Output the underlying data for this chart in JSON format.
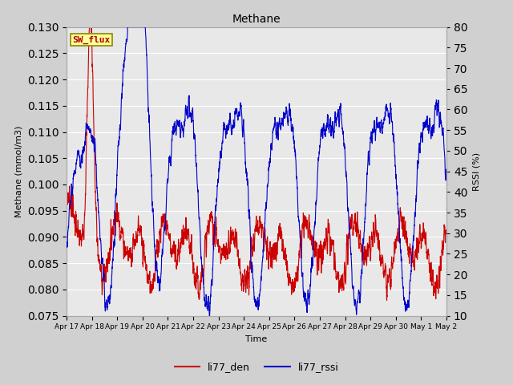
{
  "title": "Methane",
  "ylabel_left": "Methane (mmol/m3)",
  "ylabel_right": "RSSI (%)",
  "xlabel": "Time",
  "ylim_left": [
    0.075,
    0.13
  ],
  "ylim_right": [
    10,
    80
  ],
  "yticks_left": [
    0.075,
    0.08,
    0.085,
    0.09,
    0.095,
    0.1,
    0.105,
    0.11,
    0.115,
    0.12,
    0.125,
    0.13
  ],
  "yticks_right": [
    10,
    15,
    20,
    25,
    30,
    35,
    40,
    45,
    50,
    55,
    60,
    65,
    70,
    75,
    80
  ],
  "xtick_labels": [
    "Apr 17",
    "Apr 18",
    "Apr 19",
    "Apr 20",
    "Apr 21",
    "Apr 22",
    "Apr 23",
    "Apr 24",
    "Apr 25",
    "Apr 26",
    "Apr 27",
    "Apr 28",
    "Apr 29",
    "Apr 30",
    "May 1",
    "May 2"
  ],
  "fig_bg_color": "#d0d0d0",
  "plot_bg_color": "#e8e8e8",
  "grid_color": "#ffffff",
  "line_color_red": "#cc0000",
  "line_color_blue": "#0000cc",
  "legend_labels": [
    "li77_den",
    "li77_rssi"
  ],
  "sw_flux_box_color": "#ffff99",
  "sw_flux_text_color": "#aa0000",
  "sw_flux_border_color": "#888800",
  "n_points": 3000
}
